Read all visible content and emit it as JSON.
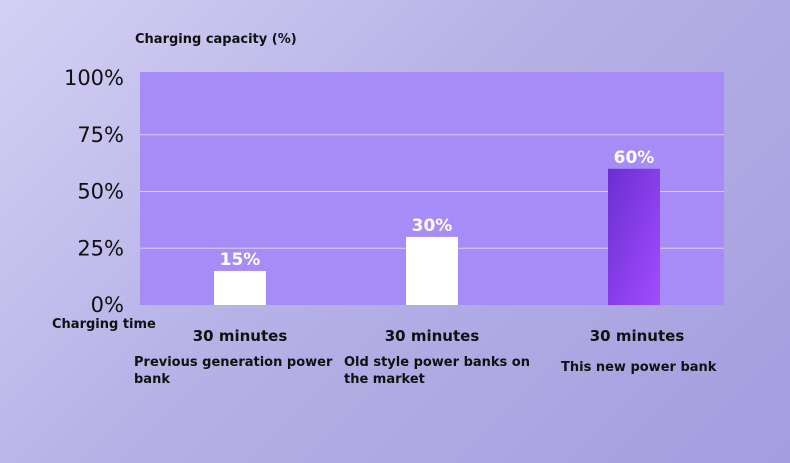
{
  "chart_data": {
    "type": "bar",
    "ylabel": "Charging capacity (%)",
    "xlabel": "Charging time",
    "ylim": [
      0,
      100
    ],
    "yticks": [
      "0%",
      "25%",
      "50%",
      "75%",
      "100%"
    ],
    "categories": [
      "30 minutes",
      "30 minutes",
      "30 minutes"
    ],
    "category_names": [
      "Previous generation power bank",
      "Old style power banks on the market",
      "This new power bank"
    ],
    "values": [
      15,
      30,
      60
    ],
    "data_labels": [
      "15%",
      "30%",
      "60%"
    ],
    "colors": {
      "plot_background": "#a78bf6",
      "bar_default": "#ffffff",
      "bar_highlight_start": "#6b2fd0",
      "bar_highlight_end": "#a24cff",
      "gridline": "#d9cffc"
    },
    "grid": true
  }
}
